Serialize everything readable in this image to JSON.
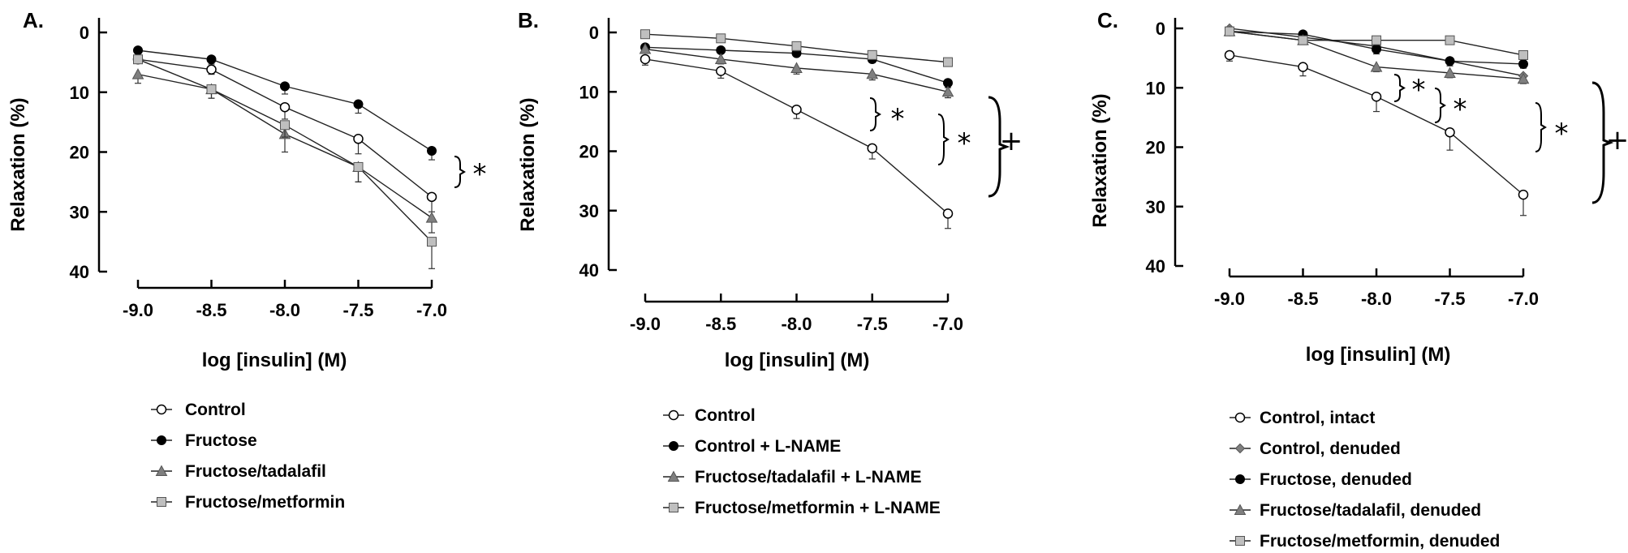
{
  "chart_data": [
    {
      "type": "line",
      "panel_label": "A.",
      "xlabel": "log [insulin] (M)",
      "ylabel": "Relaxation (%)",
      "x": [
        -9.0,
        -8.5,
        -8.0,
        -7.5,
        -7.0
      ],
      "x_tick_labels": [
        "-9.0",
        "-8.5",
        "-8.0",
        "-7.5",
        "-7.0"
      ],
      "xlim": [
        -9.0,
        -7.0
      ],
      "ylim": [
        0,
        40
      ],
      "y_inverted": true,
      "y_ticks": [
        0,
        10,
        20,
        30,
        40
      ],
      "y_tick_labels": [
        "0",
        "10",
        "20",
        "30",
        "40"
      ],
      "grid": false,
      "series": [
        {
          "name": "Control",
          "marker": "circle-open",
          "color": "#000000",
          "values": [
            4.5,
            6.2,
            12.5,
            17.8,
            27.5
          ],
          "errors": [
            0.5,
            0.8,
            2.0,
            2.5,
            2.5
          ]
        },
        {
          "name": "Fructose",
          "marker": "circle-filled",
          "color": "#000000",
          "values": [
            3.0,
            4.5,
            9.0,
            12.0,
            19.8
          ],
          "errors": [
            0.4,
            0.8,
            1.3,
            1.5,
            1.5
          ]
        },
        {
          "name": "Fructose/tadalafil",
          "marker": "triangle",
          "color": "#7f7f7f",
          "values": [
            7.0,
            9.5,
            17.0,
            22.5,
            31.0
          ],
          "errors": [
            1.5,
            1.5,
            3.0,
            2.5,
            2.5
          ]
        },
        {
          "name": "Fructose/metformin",
          "marker": "square",
          "color": "#bfbfbf",
          "values": [
            4.5,
            9.5,
            15.5,
            22.5,
            35.0
          ],
          "errors": [
            0.5,
            1.5,
            2.0,
            2.5,
            4.5
          ]
        }
      ],
      "annotations": [
        "*"
      ]
    },
    {
      "type": "line",
      "panel_label": "B.",
      "xlabel": "log [insulin] (M)",
      "ylabel": "Relaxation (%)",
      "x": [
        -9.0,
        -8.5,
        -8.0,
        -7.5,
        -7.0
      ],
      "x_tick_labels": [
        "-9.0",
        "-8.5",
        "-8.0",
        "-7.5",
        "-7.0"
      ],
      "xlim": [
        -9.0,
        -7.0
      ],
      "ylim": [
        0,
        40
      ],
      "y_inverted": true,
      "y_ticks": [
        0,
        10,
        20,
        30,
        40
      ],
      "y_tick_labels": [
        "0",
        "10",
        "20",
        "30",
        "40"
      ],
      "grid": false,
      "series": [
        {
          "name": "Control",
          "marker": "circle-open",
          "color": "#000000",
          "values": [
            4.5,
            6.5,
            13.0,
            19.5,
            30.5
          ],
          "errors": [
            1.0,
            1.2,
            1.5,
            1.8,
            2.5
          ]
        },
        {
          "name": "Control + L-NAME",
          "marker": "circle-filled",
          "color": "#000000",
          "values": [
            2.5,
            3.0,
            3.5,
            4.5,
            8.5
          ],
          "errors": [
            0.4,
            0.4,
            0.5,
            0.6,
            0.8
          ]
        },
        {
          "name": "Fructose/tadalafil + L-NAME",
          "marker": "triangle",
          "color": "#7f7f7f",
          "values": [
            2.8,
            4.5,
            6.0,
            7.0,
            10.0
          ],
          "errors": [
            0.5,
            0.8,
            1.0,
            1.0,
            1.0
          ]
        },
        {
          "name": "Fructose/metformin + L-NAME",
          "marker": "square",
          "color": "#bfbfbf",
          "values": [
            0.3,
            1.0,
            2.3,
            3.8,
            5.0
          ],
          "errors": [
            0.2,
            0.4,
            0.8,
            0.6,
            0.5
          ]
        }
      ],
      "annotations": [
        "*",
        "*",
        "+"
      ]
    },
    {
      "type": "line",
      "panel_label": "C.",
      "xlabel": "log [insulin] (M)",
      "ylabel": "Relaxation (%)",
      "x": [
        -9.0,
        -8.5,
        -8.0,
        -7.5,
        -7.0
      ],
      "x_tick_labels": [
        "-9.0",
        "-8.5",
        "-8.0",
        "-7.5",
        "-7.0"
      ],
      "xlim": [
        -9.0,
        -7.0
      ],
      "ylim": [
        0,
        40
      ],
      "y_inverted": true,
      "y_ticks": [
        0,
        10,
        20,
        30,
        40
      ],
      "y_tick_labels": [
        "0",
        "10",
        "20",
        "30",
        "40"
      ],
      "grid": false,
      "series": [
        {
          "name": "Control, intact",
          "marker": "circle-open",
          "color": "#000000",
          "values": [
            4.5,
            6.5,
            11.5,
            17.5,
            28.0
          ],
          "errors": [
            1.0,
            1.5,
            2.5,
            3.0,
            3.5
          ]
        },
        {
          "name": "Control, denuded",
          "marker": "diamond",
          "color": "#7f7f7f",
          "values": [
            0.0,
            1.5,
            3.0,
            5.5,
            8.0
          ],
          "errors": [
            0.4,
            0.5,
            0.8,
            0.8,
            0.8
          ]
        },
        {
          "name": "Fructose, denuded",
          "marker": "circle-filled",
          "color": "#000000",
          "values": [
            0.5,
            1.0,
            3.5,
            5.5,
            6.0
          ],
          "errors": [
            0.3,
            0.4,
            0.8,
            0.8,
            0.7
          ]
        },
        {
          "name": "Fructose/tadalafil, denuded",
          "marker": "triangle",
          "color": "#7f7f7f",
          "values": [
            0.5,
            2.0,
            6.5,
            7.5,
            8.5
          ],
          "errors": [
            0.3,
            0.5,
            0.8,
            0.8,
            0.8
          ]
        },
        {
          "name": "Fructose/metformin, denuded",
          "marker": "square",
          "color": "#bfbfbf",
          "values": [
            0.5,
            2.0,
            2.0,
            2.0,
            4.5
          ],
          "errors": [
            0.3,
            0.4,
            0.4,
            0.4,
            0.5
          ]
        }
      ],
      "annotations": [
        "*",
        "*",
        "*",
        "+"
      ]
    }
  ]
}
